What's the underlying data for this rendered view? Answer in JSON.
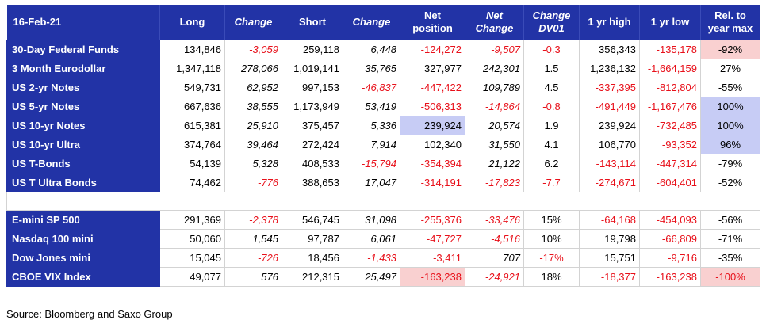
{
  "header": {
    "date": "16-Feb-21",
    "cols": [
      {
        "t1": "Long",
        "t2": "",
        "italic": false
      },
      {
        "t1": "Change",
        "t2": "",
        "italic": true
      },
      {
        "t1": "Short",
        "t2": "",
        "italic": false
      },
      {
        "t1": "Change",
        "t2": "",
        "italic": true
      },
      {
        "t1": "Net",
        "t2": "position",
        "italic": false
      },
      {
        "t1": "Net",
        "t2": "Change",
        "italic": true
      },
      {
        "t1": "Change",
        "t2": "DV01",
        "italic": true
      },
      {
        "t1": "1 yr high",
        "t2": "",
        "italic": false
      },
      {
        "t1": "1 yr low",
        "t2": "",
        "italic": false
      },
      {
        "t1": "Rel. to",
        "t2": "year max",
        "italic": false
      }
    ]
  },
  "group1": [
    {
      "name": "30-Day Federal Funds",
      "v": [
        "134,846",
        "-3,059",
        "259,118",
        "6,448",
        "-124,272",
        "-9,507",
        "-0.3",
        "356,343",
        "-135,178",
        "-92%"
      ]
    },
    {
      "name": "3 Month Eurodollar",
      "v": [
        "1,347,118",
        "278,066",
        "1,019,141",
        "35,765",
        "327,977",
        "242,301",
        "1.5",
        "1,236,132",
        "-1,664,159",
        "27%"
      ]
    },
    {
      "name": "US 2-yr Notes",
      "v": [
        "549,731",
        "62,952",
        "997,153",
        "-46,837",
        "-447,422",
        "109,789",
        "4.5",
        "-337,395",
        "-812,804",
        "-55%"
      ]
    },
    {
      "name": "US 5-yr Notes",
      "v": [
        "667,636",
        "38,555",
        "1,173,949",
        "53,419",
        "-506,313",
        "-14,864",
        "-0.8",
        "-491,449",
        "-1,167,476",
        "100%"
      ]
    },
    {
      "name": "US 10-yr Notes",
      "v": [
        "615,381",
        "25,910",
        "375,457",
        "5,336",
        "239,924",
        "20,574",
        "1.9",
        "239,924",
        "-732,485",
        "100%"
      ]
    },
    {
      "name": "US 10-yr Ultra",
      "v": [
        "374,764",
        "39,464",
        "272,424",
        "7,914",
        "102,340",
        "31,550",
        "4.1",
        "106,770",
        "-93,352",
        "96%"
      ]
    },
    {
      "name": "US T-Bonds",
      "v": [
        "54,139",
        "5,328",
        "408,533",
        "-15,794",
        "-354,394",
        "21,122",
        "6.2",
        "-143,114",
        "-447,314",
        "-79%"
      ]
    },
    {
      "name": "US T Ultra Bonds",
      "v": [
        "74,462",
        "-776",
        "388,653",
        "17,047",
        "-314,191",
        "-17,823",
        "-7.7",
        "-274,671",
        "-604,401",
        "-52%"
      ]
    }
  ],
  "group2": [
    {
      "name": "E-mini SP 500",
      "v": [
        "291,369",
        "-2,378",
        "546,745",
        "31,098",
        "-255,376",
        "-33,476",
        "15%",
        "-64,168",
        "-454,093",
        "-56%"
      ]
    },
    {
      "name": "Nasdaq 100 mini",
      "v": [
        "50,060",
        "1,545",
        "97,787",
        "6,061",
        "-47,727",
        "-4,516",
        "10%",
        "19,798",
        "-66,809",
        "-71%"
      ]
    },
    {
      "name": "Dow Jones mini",
      "v": [
        "15,045",
        "-726",
        "18,456",
        "-1,433",
        "-3,411",
        "707",
        "-17%",
        "15,751",
        "-9,716",
        "-35%"
      ]
    },
    {
      "name": "CBOE VIX Index",
      "v": [
        "49,077",
        "576",
        "212,315",
        "25,497",
        "-163,238",
        "-24,921",
        "18%",
        "-18,377",
        "-163,238",
        "-100%"
      ]
    }
  ],
  "highlights": {
    "red": [
      [
        0,
        9
      ],
      [
        11,
        4
      ],
      [
        11,
        9
      ]
    ],
    "blue": [
      [
        3,
        9
      ],
      [
        4,
        4
      ],
      [
        4,
        9
      ],
      [
        5,
        9
      ]
    ]
  },
  "colors": {
    "header_bg": "#2233a6",
    "negative": "#e8101a",
    "highlight_red": "#f9d0d0",
    "highlight_blue": "#c7ccf5"
  },
  "footer": {
    "source": "Source: Bloomberg and Saxo Group"
  }
}
